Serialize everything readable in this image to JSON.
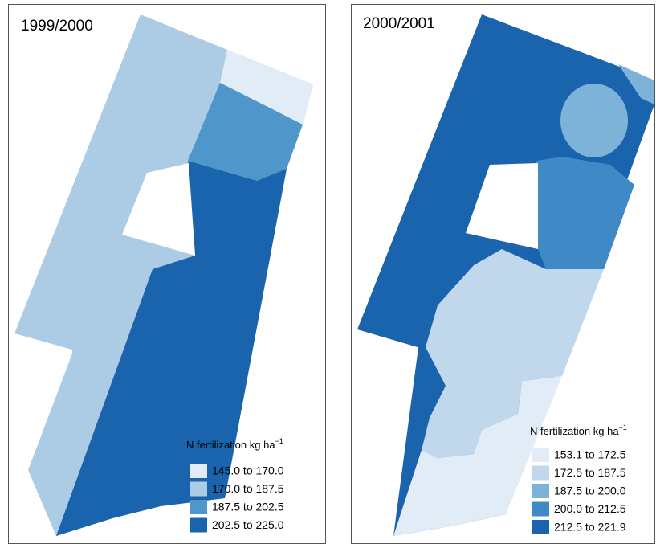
{
  "panels": [
    {
      "title": "1999/2000",
      "legend": {
        "title": "N fertilization kg ha",
        "title_exponent": "−1",
        "entries": [
          {
            "label": "145.0 to 170.0",
            "color": "#e2ecf7"
          },
          {
            "label": "170.0 to 187.5",
            "color": "#abcce4"
          },
          {
            "label": "187.5 to 202.5",
            "color": "#4f97cb"
          },
          {
            "label": "202.5 to 225.0",
            "color": "#1a63ad"
          }
        ]
      }
    },
    {
      "title": "2000/2001",
      "legend": {
        "title": "N fertilization kg ha",
        "title_exponent": "−1",
        "entries": [
          {
            "label": "153.1 to 172.5",
            "color": "#e2ecf7"
          },
          {
            "label": "172.5 to 187.5",
            "color": "#c1d7ec"
          },
          {
            "label": "187.5 to 200.0",
            "color": "#7eb3d9"
          },
          {
            "label": "200.0 to 212.5",
            "color": "#3e89c6"
          },
          {
            "label": "212.5 to 221.9",
            "color": "#1a63ad"
          }
        ]
      }
    }
  ]
}
